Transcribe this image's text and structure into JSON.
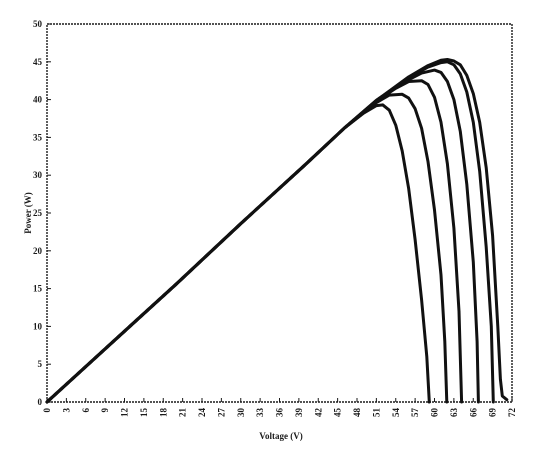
{
  "chart_data": {
    "type": "line",
    "title": "",
    "xlabel": "Voltage (V)",
    "ylabel": "Power (W)",
    "xlim": [
      0,
      72
    ],
    "ylim": [
      0,
      50
    ],
    "x_ticks": [
      0,
      3,
      6,
      9,
      12,
      15,
      18,
      21,
      24,
      27,
      30,
      33,
      36,
      39,
      42,
      45,
      48,
      51,
      54,
      57,
      60,
      63,
      66,
      69,
      72
    ],
    "y_ticks": [
      0,
      5,
      10,
      15,
      20,
      25,
      30,
      35,
      40,
      45,
      50
    ],
    "grid": false,
    "legend": "none",
    "line_color": "#111111",
    "series": [
      {
        "points": [
          [
            0,
            0
          ],
          [
            10,
            7.8
          ],
          [
            20,
            15.6
          ],
          [
            30,
            23.6
          ],
          [
            40,
            31.4
          ],
          [
            46,
            36.2
          ],
          [
            49,
            38.2
          ],
          [
            51,
            39.2
          ],
          [
            52,
            39.3
          ],
          [
            53,
            38.6
          ],
          [
            54,
            36.6
          ],
          [
            55,
            33.2
          ],
          [
            56,
            28.2
          ],
          [
            57,
            21.5
          ],
          [
            58,
            13.5
          ],
          [
            58.8,
            6
          ],
          [
            59.2,
            0
          ]
        ]
      },
      {
        "points": [
          [
            0,
            0
          ],
          [
            10,
            7.8
          ],
          [
            20,
            15.6
          ],
          [
            30,
            23.6
          ],
          [
            40,
            31.4
          ],
          [
            46,
            36.2
          ],
          [
            51,
            39.6
          ],
          [
            53,
            40.6
          ],
          [
            55,
            40.7
          ],
          [
            56,
            40.2
          ],
          [
            57,
            38.8
          ],
          [
            58,
            36.2
          ],
          [
            59,
            31.8
          ],
          [
            60,
            25.4
          ],
          [
            61,
            16.8
          ],
          [
            61.6,
            8
          ],
          [
            61.9,
            0
          ]
        ]
      },
      {
        "points": [
          [
            0,
            0
          ],
          [
            10,
            7.8
          ],
          [
            20,
            15.6
          ],
          [
            30,
            23.6
          ],
          [
            40,
            31.4
          ],
          [
            46,
            36.2
          ],
          [
            51,
            39.8
          ],
          [
            54,
            41.5
          ],
          [
            56,
            42.4
          ],
          [
            58,
            42.5
          ],
          [
            59,
            42
          ],
          [
            60,
            40.3
          ],
          [
            61,
            37
          ],
          [
            62,
            31.5
          ],
          [
            63,
            23
          ],
          [
            63.8,
            12
          ],
          [
            64.2,
            0
          ]
        ]
      },
      {
        "points": [
          [
            0,
            0
          ],
          [
            10,
            7.8
          ],
          [
            20,
            15.6
          ],
          [
            30,
            23.6
          ],
          [
            40,
            31.4
          ],
          [
            46,
            36.2
          ],
          [
            51,
            39.9
          ],
          [
            55,
            42.2
          ],
          [
            58,
            43.5
          ],
          [
            60,
            43.9
          ],
          [
            61,
            43.6
          ],
          [
            62,
            42.4
          ],
          [
            63,
            40
          ],
          [
            64,
            35.8
          ],
          [
            65,
            28.8
          ],
          [
            66,
            18.5
          ],
          [
            66.6,
            8
          ],
          [
            66.8,
            0
          ]
        ]
      },
      {
        "points": [
          [
            0,
            0
          ],
          [
            10,
            7.8
          ],
          [
            20,
            15.6
          ],
          [
            30,
            23.6
          ],
          [
            40,
            31.4
          ],
          [
            46,
            36.2
          ],
          [
            51,
            39.9
          ],
          [
            56,
            42.9
          ],
          [
            59,
            44.3
          ],
          [
            61,
            44.9
          ],
          [
            62,
            45
          ],
          [
            63,
            44.6
          ],
          [
            64,
            43.4
          ],
          [
            65,
            41
          ],
          [
            66,
            37
          ],
          [
            67,
            30.5
          ],
          [
            68,
            20.5
          ],
          [
            68.8,
            10
          ],
          [
            69.1,
            0
          ]
        ]
      },
      {
        "points": [
          [
            0,
            0
          ],
          [
            10,
            7.8
          ],
          [
            20,
            15.6
          ],
          [
            30,
            23.6
          ],
          [
            40,
            31.4
          ],
          [
            46,
            36.2
          ],
          [
            51,
            39.9
          ],
          [
            56,
            43
          ],
          [
            59,
            44.5
          ],
          [
            61,
            45.2
          ],
          [
            62,
            45.3
          ],
          [
            63,
            45.1
          ],
          [
            64,
            44.6
          ],
          [
            65,
            43.2
          ],
          [
            66,
            40.8
          ],
          [
            67,
            37
          ],
          [
            68,
            31
          ],
          [
            69,
            22
          ],
          [
            69.8,
            10
          ],
          [
            70.2,
            3
          ],
          [
            70.5,
            0.8
          ],
          [
            71.2,
            0.3
          ]
        ]
      }
    ]
  }
}
